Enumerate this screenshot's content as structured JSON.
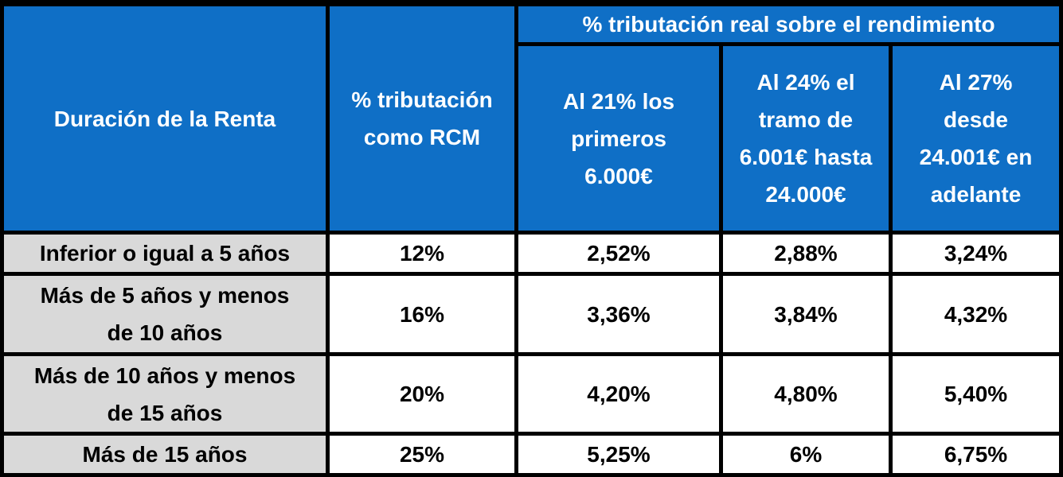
{
  "header": {
    "duration": "Duración de la Renta",
    "rcm_rate_line1": "% tributación",
    "rcm_rate_line2": "como RCM",
    "real_rate_group": "% tributación real sobre el rendimiento",
    "col_21_line1": "Al 21% los",
    "col_21_line2": "primeros",
    "col_21_line3": "6.000€",
    "col_24_line1": "Al 24% el",
    "col_24_line2": "tramo de",
    "col_24_line3": "6.001€ hasta",
    "col_24_line4": "24.000€",
    "col_27_line1": "Al 27%",
    "col_27_line2": "desde",
    "col_27_line3": "24.001€ en",
    "col_27_line4": "adelante"
  },
  "rows": [
    {
      "label_line1": "Inferior o igual a 5 años",
      "label_line2": "",
      "rcm": "12%",
      "r21": "2,52%",
      "r24": "2,88%",
      "r27": "3,24%"
    },
    {
      "label_line1": "Más de 5 años y menos",
      "label_line2": "de 10 años",
      "rcm": "16%",
      "r21": "3,36%",
      "r24": "3,84%",
      "r27": "4,32%"
    },
    {
      "label_line1": "Más de 10 años y menos",
      "label_line2": "de 15 años",
      "rcm": "20%",
      "r21": "4,20%",
      "r24": "4,80%",
      "r27": "5,40%"
    },
    {
      "label_line1": "Más de 15 años",
      "label_line2": "",
      "rcm": "25%",
      "r21": "5,25%",
      "r24": "6%",
      "r27": "6,75%"
    }
  ],
  "colors": {
    "header_bg": "#0f6fc6",
    "label_bg": "#d9d9d9",
    "cell_bg": "#ffffff",
    "border": "#000000"
  }
}
